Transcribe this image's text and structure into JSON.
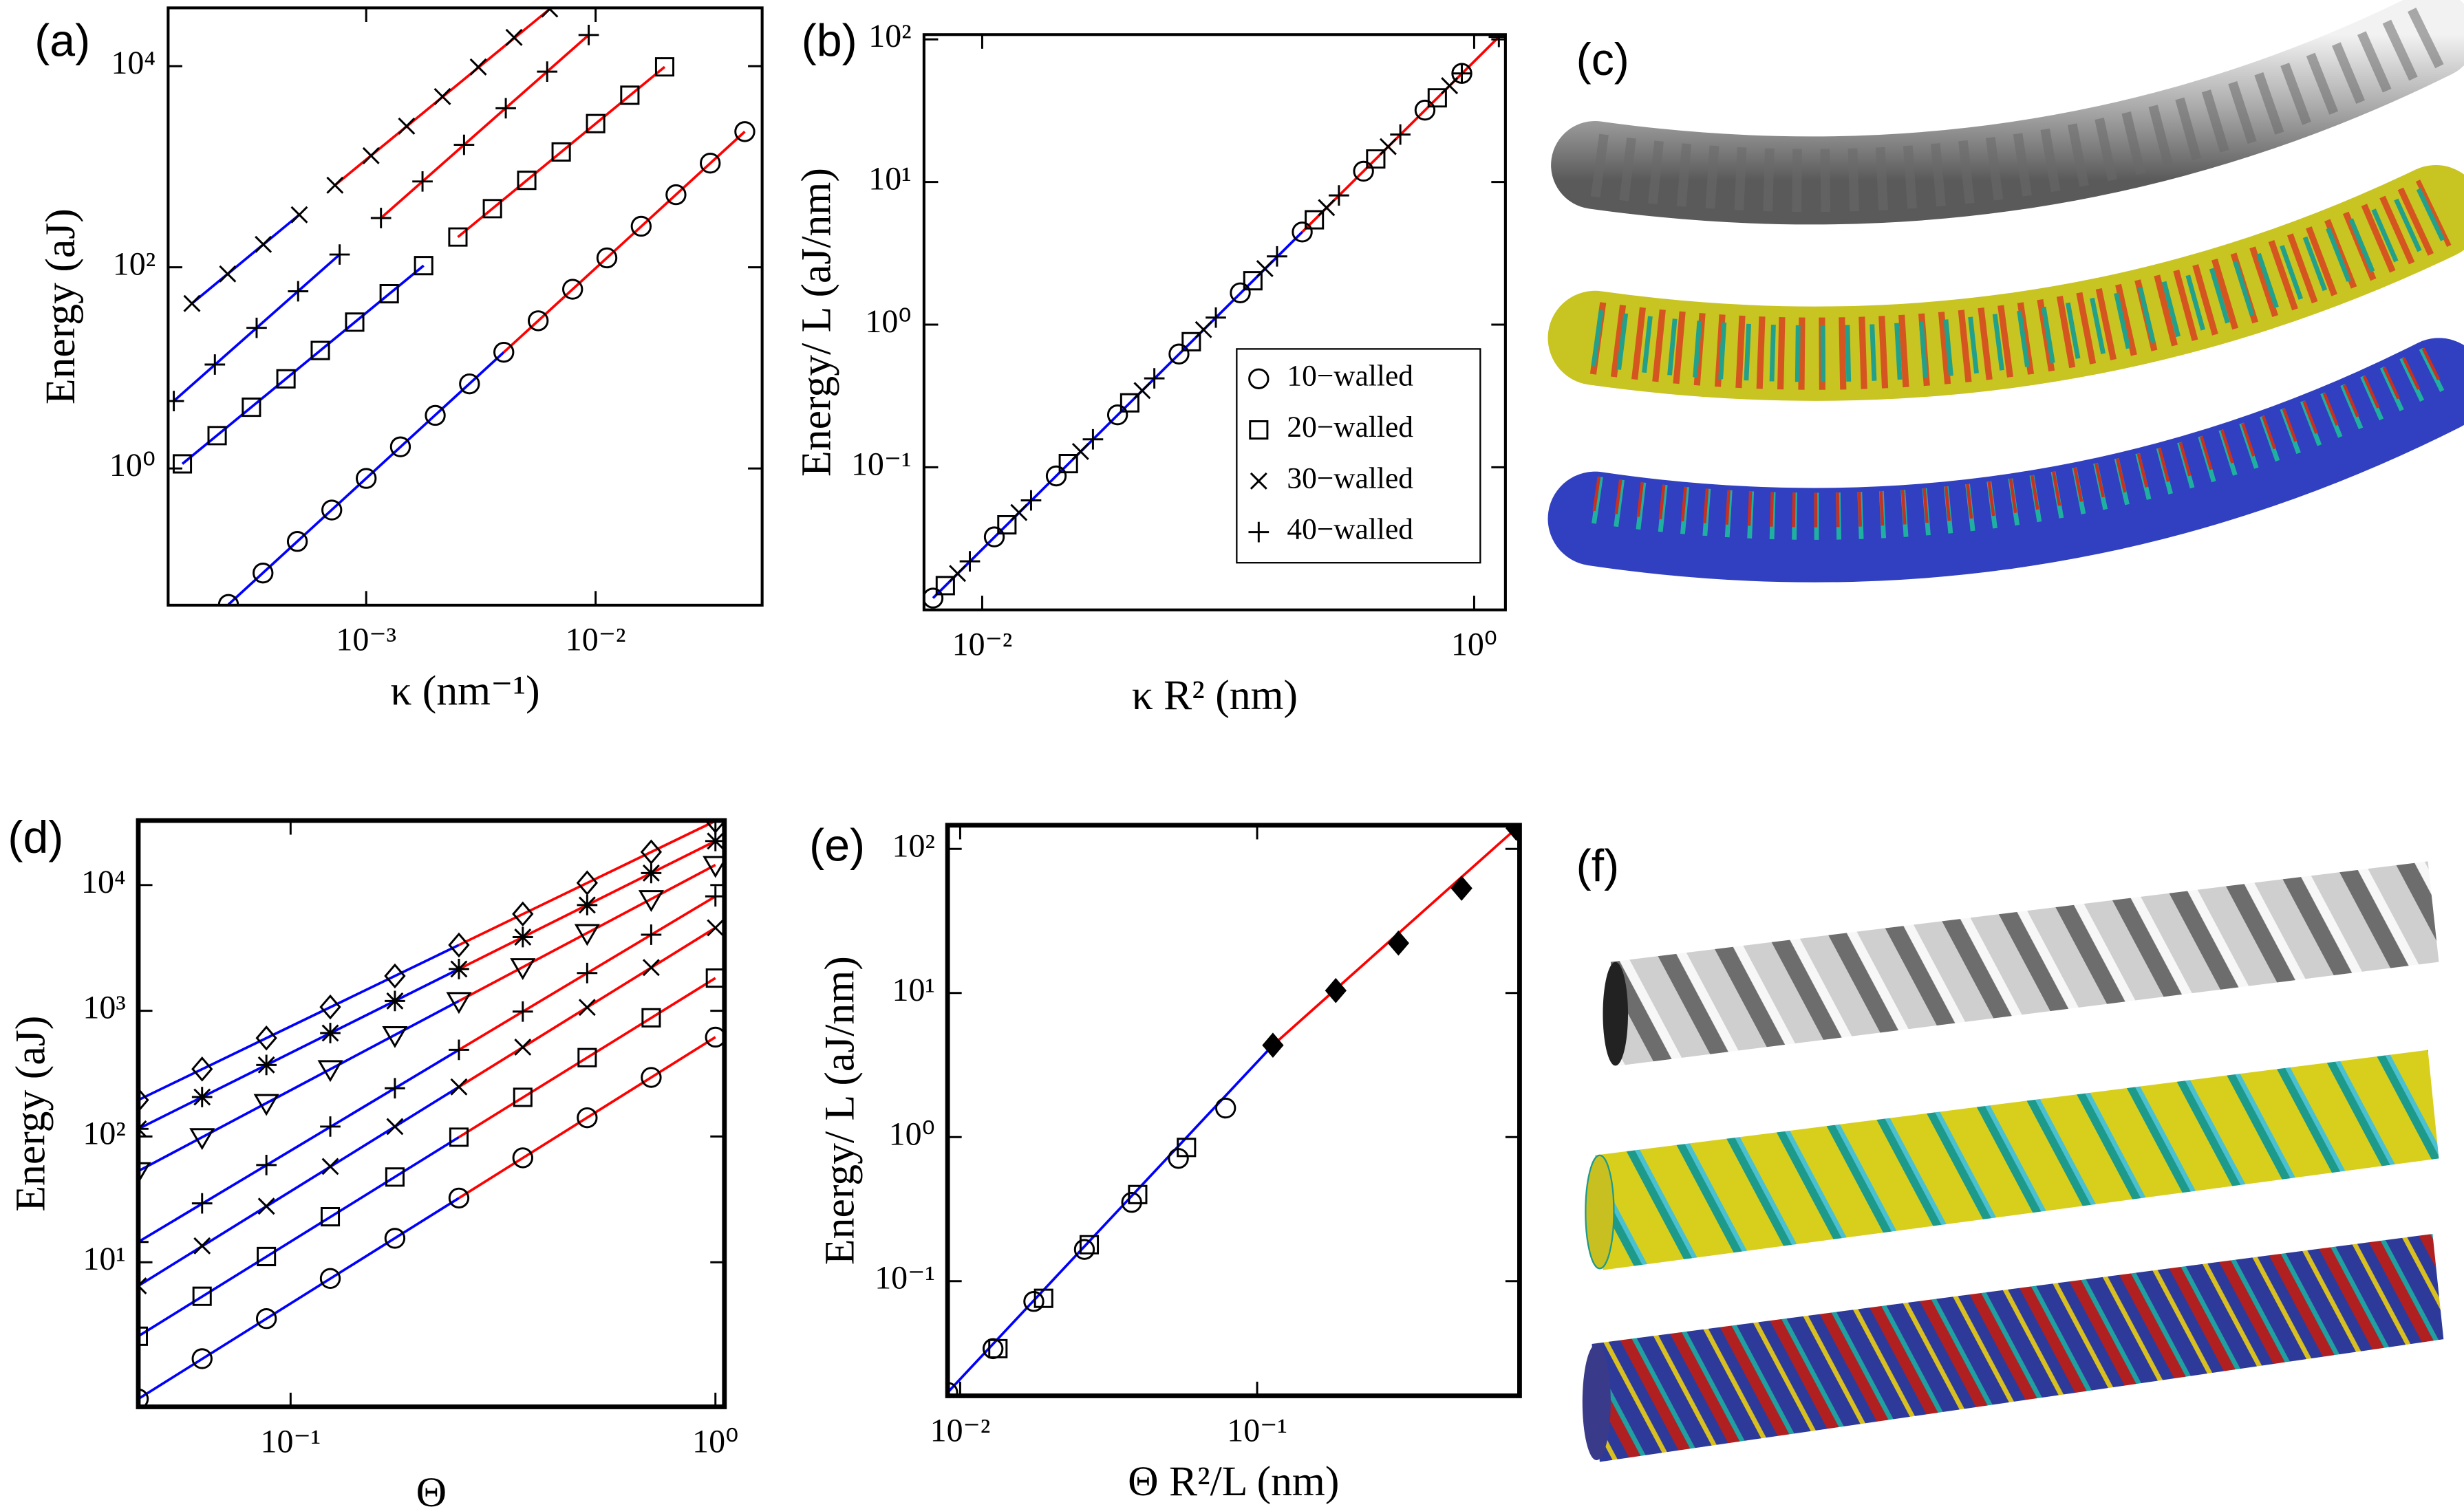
{
  "chart_data": [
    {
      "label": "(a)",
      "type": "scatter",
      "xscale": "log",
      "yscale": "log",
      "xlabel": "κ (nm⁻¹)",
      "ylabel": "Energy (aJ)",
      "xlim": [
        0.000137,
        0.0532
      ],
      "ylim": [
        0.0437,
        38000
      ],
      "xticks": [
        {
          "value": 0.001,
          "label": "10⁻³"
        },
        {
          "value": 0.01,
          "label": "10⁻²"
        }
      ],
      "yticks": [
        {
          "value": 1,
          "label": "10⁰"
        },
        {
          "value": 100,
          "label": "10²"
        },
        {
          "value": 10000,
          "label": "10⁴"
        }
      ],
      "series": [
        {
          "marker": "circle",
          "color": "#000000",
          "x": [
            0.000251,
            0.000355,
            0.000501,
            0.000708,
            0.001,
            0.00141,
            0.002,
            0.00282,
            0.00398,
            0.00562,
            0.00794,
            0.0112,
            0.0158,
            0.0224,
            0.0316,
            0.0447
          ],
          "values": [
            0.0444,
            0.0912,
            0.188,
            0.386,
            0.796,
            1.64,
            3.37,
            6.93,
            14.3,
            29.4,
            60.5,
            124,
            256,
            527,
            1086,
            2234
          ]
        },
        {
          "marker": "square",
          "color": "#000000",
          "x": [
            0.000158,
            0.000224,
            0.000316,
            0.000447,
            0.000631,
            0.000891,
            0.00126,
            0.00178,
            0.00251,
            0.00355,
            0.00501,
            0.00708,
            0.01,
            0.0141,
            0.02
          ],
          "values": [
            1.11,
            2.12,
            4.06,
            7.78,
            14.9,
            28.5,
            54.6,
            104,
            200,
            383,
            733,
            1403,
            2685,
            5140,
            9840
          ]
        },
        {
          "marker": "plus",
          "color": "#000000",
          "x": [
            0.000145,
            0.000219,
            0.000333,
            0.000505,
            0.000766,
            0.00116,
            0.00176,
            0.00267,
            0.00406,
            0.00615,
            0.00933
          ],
          "values": [
            4.68,
            10.8,
            25,
            57.8,
            134,
            309,
            714,
            1652,
            3819,
            8831,
            20420
          ]
        },
        {
          "marker": "x",
          "color": "#000000",
          "x": [
            0.000174,
            0.000249,
            0.000356,
            0.000511,
            0.000731,
            0.00105,
            0.0015,
            0.00215,
            0.00308,
            0.00441,
            0.00631
          ],
          "values": [
            43.7,
            85.9,
            169,
            333,
            655,
            1288,
            2535,
            4989,
            9817,
            19320,
            37000
          ]
        }
      ],
      "fits": [
        {
          "color": "#0000ff",
          "x": [
            0.000251,
            0.00398
          ],
          "values": [
            0.0444,
            14.3
          ]
        },
        {
          "color": "#ff0000",
          "x": [
            0.00398,
            0.0447
          ],
          "values": [
            14.3,
            2234
          ]
        },
        {
          "color": "#0000ff",
          "x": [
            0.000158,
            0.00178
          ],
          "values": [
            1.11,
            104
          ]
        },
        {
          "color": "#ff0000",
          "x": [
            0.00251,
            0.02
          ],
          "values": [
            200,
            9840
          ]
        },
        {
          "color": "#0000ff",
          "x": [
            0.000145,
            0.000766
          ],
          "values": [
            4.68,
            134
          ]
        },
        {
          "color": "#ff0000",
          "x": [
            0.00116,
            0.00933
          ],
          "values": [
            309,
            20420
          ]
        },
        {
          "color": "#0000ff",
          "x": [
            0.000174,
            0.000511
          ],
          "values": [
            43.7,
            333
          ]
        },
        {
          "color": "#ff0000",
          "x": [
            0.000731,
            0.00631
          ],
          "values": [
            655,
            37000
          ]
        }
      ]
    },
    {
      "label": "(b)",
      "type": "scatter",
      "xscale": "log",
      "yscale": "log",
      "xlabel": "κ R² (nm)",
      "ylabel": "Energy/ L (aJ/nm)",
      "xlim": [
        0.0058,
        1.34
      ],
      "ylim": [
        0.01,
        108
      ],
      "xticks": [
        {
          "value": 0.01,
          "label": "10⁻²"
        },
        {
          "value": 1,
          "label": "10⁰"
        }
      ],
      "yticks": [
        {
          "value": 0.1,
          "label": "10⁻¹"
        },
        {
          "value": 1,
          "label": "10⁰"
        },
        {
          "value": 10,
          "label": "10¹"
        },
        {
          "value": 100,
          "label": "10²"
        }
      ],
      "legend": "lower right",
      "series": [
        {
          "name": "10−walled",
          "marker": "circle",
          "color": "#000000",
          "x": [
            0.00631,
            0.0112,
            0.02,
            0.0355,
            0.0631,
            0.112,
            0.2,
            0.355,
            0.631,
            0.891
          ],
          "values": [
            0.0121,
            0.0325,
            0.0869,
            0.233,
            0.622,
            1.67,
            4.46,
            11.9,
            31.9,
            57.7
          ]
        },
        {
          "name": "20−walled",
          "marker": "square",
          "color": "#000000",
          "x": [
            0.00708,
            0.0126,
            0.0224,
            0.0398,
            0.0708,
            0.126,
            0.224,
            0.398,
            0.708
          ],
          "values": [
            0.0148,
            0.0395,
            0.106,
            0.283,
            0.759,
            2.03,
            5.43,
            14.5,
            38.9
          ]
        },
        {
          "name": "30−walled",
          "marker": "x",
          "color": "#000000",
          "x": [
            0.00794,
            0.0141,
            0.0251,
            0.0447,
            0.0794,
            0.141,
            0.251,
            0.447,
            0.794
          ],
          "values": [
            0.018,
            0.0482,
            0.129,
            0.345,
            0.923,
            2.47,
            6.61,
            17.7,
            47.3
          ]
        },
        {
          "name": "40−walled",
          "marker": "plus",
          "color": "#000000",
          "x": [
            0.00891,
            0.0158,
            0.0282,
            0.0501,
            0.0891,
            0.158,
            0.282,
            0.501,
            0.891,
            1.26
          ],
          "values": [
            0.0219,
            0.0586,
            0.157,
            0.42,
            1.12,
            3.01,
            8.05,
            21.5,
            57.7,
            104
          ]
        }
      ],
      "fits": [
        {
          "color": "#0000ff",
          "x": [
            0.00631,
            0.2
          ],
          "values": [
            0.0121,
            4.46
          ]
        },
        {
          "color": "#ff0000",
          "x": [
            0.2,
            1.26
          ],
          "values": [
            4.46,
            104
          ]
        }
      ]
    },
    {
      "label": "(d)",
      "type": "scatter",
      "xscale": "log",
      "yscale": "log",
      "xlabel": "Θ",
      "ylabel": "Energy (aJ)",
      "xlim": [
        0.0438,
        1.05
      ],
      "ylim": [
        0.708,
        32600
      ],
      "xticks": [
        {
          "value": 0.1,
          "label": "10⁻¹"
        },
        {
          "value": 1,
          "label": "10⁰"
        }
      ],
      "yticks": [
        {
          "value": 10,
          "label": "10¹"
        },
        {
          "value": 100,
          "label": "10²"
        },
        {
          "value": 1000,
          "label": "10³"
        },
        {
          "value": 10000,
          "label": "10⁴"
        }
      ],
      "series": [
        {
          "marker": "circle",
          "color": "#000000",
          "x": [
            0.0438,
            0.0619,
            0.0877,
            0.124,
            0.176,
            0.249,
            0.352,
            0.499,
            0.706,
            1
          ],
          "values": [
            0.818,
            1.71,
            3.56,
            7.43,
            15.5,
            32.4,
            67.7,
            141,
            295,
            617
          ]
        },
        {
          "marker": "square",
          "color": "#000000",
          "x": [
            0.0438,
            0.0619,
            0.0877,
            0.124,
            0.176,
            0.249,
            0.352,
            0.499,
            0.706,
            1
          ],
          "values": [
            2.58,
            5.36,
            11.1,
            23,
            47.6,
            98.8,
            205,
            424,
            879,
            1820
          ]
        },
        {
          "marker": "x",
          "color": "#000000",
          "x": [
            0.0438,
            0.0619,
            0.0877,
            0.124,
            0.176,
            0.249,
            0.352,
            0.499,
            0.706,
            1
          ],
          "values": [
            6.49,
            13.5,
            27.9,
            57.8,
            120,
            248,
            514,
            1064,
            2208,
            4571
          ]
        },
        {
          "marker": "plus",
          "color": "#000000",
          "x": [
            0.0438,
            0.0619,
            0.0877,
            0.124,
            0.176,
            0.249,
            0.352,
            0.499,
            0.706,
            1
          ],
          "values": [
            14.5,
            29.4,
            59.3,
            120,
            242,
            489,
            986,
            1995,
            4027,
            8128
          ]
        },
        {
          "marker": "triangle-down",
          "color": "#000000",
          "x": [
            0.0438,
            0.0619,
            0.0877,
            0.124,
            0.176,
            0.249,
            0.352,
            0.499,
            0.706,
            1
          ],
          "values": [
            53.1,
            99.1,
            185,
            344,
            641,
            1197,
            2228,
            4159,
            7745,
            14450
          ]
        },
        {
          "marker": "star",
          "color": "#000000",
          "x": [
            0.0438,
            0.0619,
            0.0877,
            0.124,
            0.176,
            0.249,
            0.352,
            0.499,
            0.706,
            1
          ],
          "values": [
            115,
            206,
            371,
            665,
            1197,
            2148,
            3855,
            6934,
            12450,
            22390
          ]
        },
        {
          "marker": "diamond",
          "color": "#000000",
          "x": [
            0.0438,
            0.0619,
            0.0877,
            0.124,
            0.176,
            0.249,
            0.352,
            0.499,
            0.706,
            1
          ],
          "values": [
            195,
            344,
            607,
            1072,
            1892,
            3334,
            5888,
            10400,
            18320,
            32360
          ]
        }
      ],
      "fits": [
        {
          "color": "#0000ff",
          "x": [
            0.0438,
            0.249
          ],
          "values": [
            0.818,
            32.4
          ]
        },
        {
          "color": "#ff0000",
          "x": [
            0.249,
            1
          ],
          "values": [
            32.4,
            617
          ]
        },
        {
          "color": "#0000ff",
          "x": [
            0.0438,
            0.249
          ],
          "values": [
            2.58,
            98.8
          ]
        },
        {
          "color": "#ff0000",
          "x": [
            0.249,
            1
          ],
          "values": [
            98.8,
            1820
          ]
        },
        {
          "color": "#0000ff",
          "x": [
            0.0438,
            0.249
          ],
          "values": [
            6.49,
            248
          ]
        },
        {
          "color": "#ff0000",
          "x": [
            0.249,
            1
          ],
          "values": [
            248,
            4571
          ]
        },
        {
          "color": "#0000ff",
          "x": [
            0.0438,
            0.249
          ],
          "values": [
            14.5,
            489
          ]
        },
        {
          "color": "#ff0000",
          "x": [
            0.249,
            1
          ],
          "values": [
            489,
            8128
          ]
        },
        {
          "color": "#0000ff",
          "x": [
            0.0438,
            0.249
          ],
          "values": [
            53.1,
            1197
          ]
        },
        {
          "color": "#ff0000",
          "x": [
            0.249,
            1
          ],
          "values": [
            1197,
            14450
          ]
        },
        {
          "color": "#0000ff",
          "x": [
            0.0438,
            0.249
          ],
          "values": [
            115,
            2148
          ]
        },
        {
          "color": "#ff0000",
          "x": [
            0.249,
            1
          ],
          "values": [
            2148,
            22390
          ]
        },
        {
          "color": "#0000ff",
          "x": [
            0.0438,
            0.249
          ],
          "values": [
            195,
            3334
          ]
        },
        {
          "color": "#ff0000",
          "x": [
            0.249,
            1
          ],
          "values": [
            3334,
            32360
          ]
        }
      ]
    },
    {
      "label": "(e)",
      "type": "scatter",
      "xscale": "log",
      "yscale": "log",
      "xlabel": "Θ R²/L (nm)",
      "ylabel": "Energy/ L (aJ/nm)",
      "xlim": [
        0.00907,
        0.765
      ],
      "ylim": [
        0.016,
        146
      ],
      "xticks": [
        {
          "value": 0.01,
          "label": "10⁻²"
        },
        {
          "value": 0.1,
          "label": "10⁻¹"
        }
      ],
      "yticks": [
        {
          "value": 0.1,
          "label": "10⁻¹"
        },
        {
          "value": 1,
          "label": "10⁰"
        },
        {
          "value": 10,
          "label": "10¹"
        },
        {
          "value": 100,
          "label": "10²"
        }
      ],
      "series": [
        {
          "marker": "circle",
          "color": "#000000",
          "x": [
            0.00908,
            0.0129,
            0.0177,
            0.0262,
            0.0378,
            0.0543,
            0.0783
          ],
          "values": [
            0.0169,
            0.034,
            0.0723,
            0.166,
            0.352,
            0.711,
            1.59
          ]
        },
        {
          "marker": "square",
          "color": "#000000",
          "x": [
            0.0134,
            0.0191,
            0.0272,
            0.0396,
            0.0578
          ],
          "values": [
            0.034,
            0.076,
            0.179,
            0.399,
            0.847
          ]
        },
        {
          "marker": "diamond",
          "color": "#000000",
          "fill": "#000000",
          "x": [
            0.113,
            0.184,
            0.299,
            0.488,
            0.746
          ],
          "values": [
            4.34,
            10.4,
            22.2,
            53.3,
            139
          ]
        }
      ],
      "fits": [
        {
          "color": "#0000ff",
          "x": [
            0.00908,
            0.113
          ],
          "values": [
            0.0169,
            4.34
          ]
        },
        {
          "color": "#ff0000",
          "x": [
            0.113,
            0.746
          ],
          "values": [
            4.34,
            139
          ]
        }
      ]
    }
  ],
  "images": [
    {
      "label": "(c)"
    },
    {
      "label": "(f)"
    }
  ]
}
